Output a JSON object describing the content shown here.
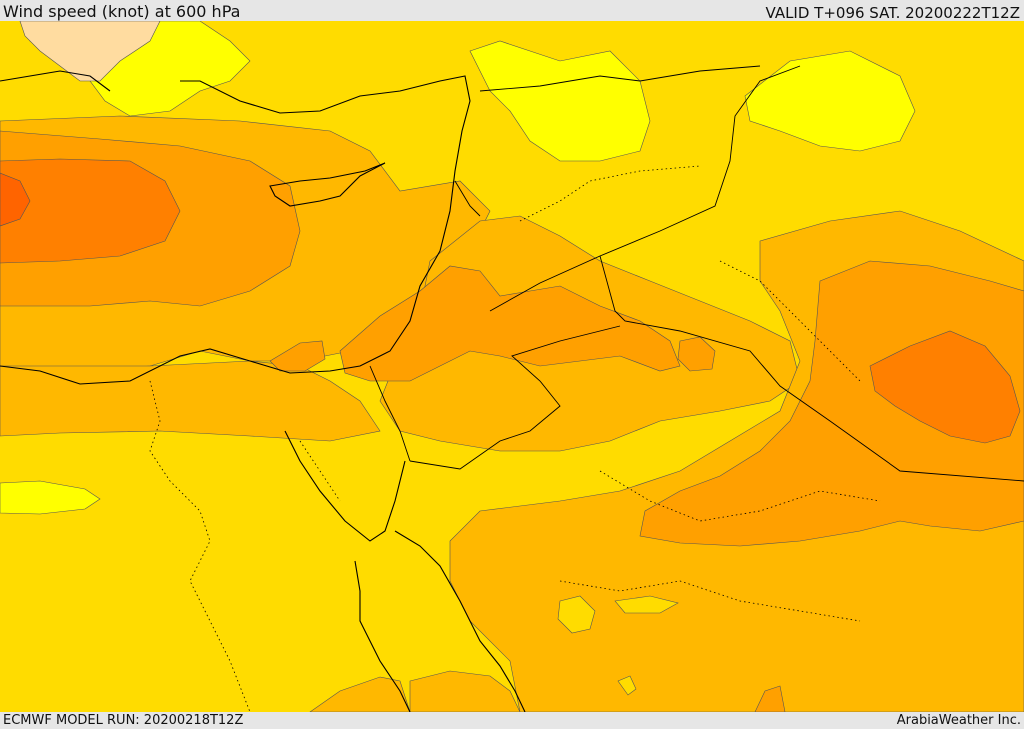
{
  "header": {
    "title": "Wind speed (knot) at 600 hPa",
    "valid": "VALID T+096 SAT. 20200222T12Z"
  },
  "footer": {
    "model_run": "ECMWF MODEL RUN: 20200218T12Z",
    "credit": "ArabiaWeather Inc."
  },
  "colors": {
    "background_band": "#ffe000",
    "light_yellow": "#ffff00",
    "gold": "#ffd000",
    "orange_light": "#ffb300",
    "orange": "#ffa000",
    "orange_dark": "#ff7d00",
    "red_orange": "#ff6400",
    "peach_land": "#ffdca0",
    "coastline": "#000000"
  }
}
